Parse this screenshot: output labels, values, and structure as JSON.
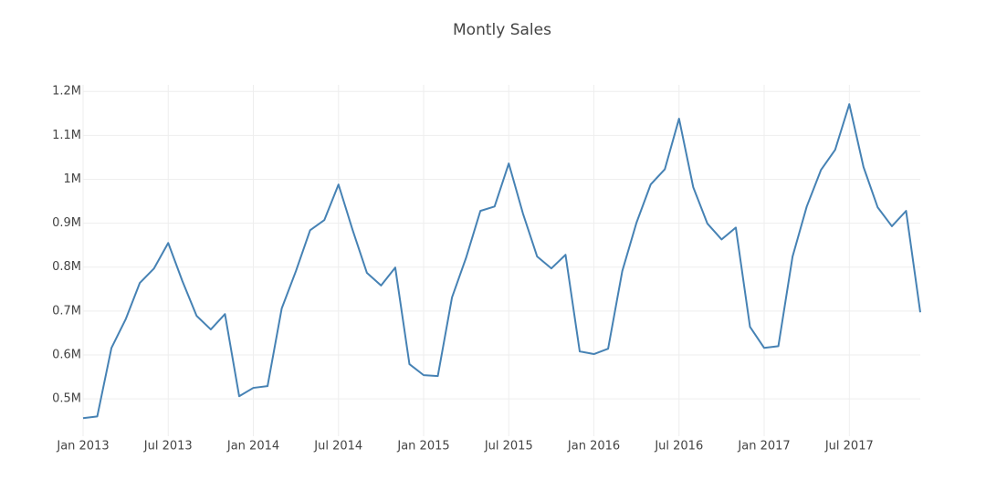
{
  "chart_data": {
    "type": "line",
    "title": "Montly Sales",
    "x": [
      "2013-01",
      "2013-02",
      "2013-03",
      "2013-04",
      "2013-05",
      "2013-06",
      "2013-07",
      "2013-08",
      "2013-09",
      "2013-10",
      "2013-11",
      "2013-12",
      "2014-01",
      "2014-02",
      "2014-03",
      "2014-04",
      "2014-05",
      "2014-06",
      "2014-07",
      "2014-08",
      "2014-09",
      "2014-10",
      "2014-11",
      "2014-12",
      "2015-01",
      "2015-02",
      "2015-03",
      "2015-04",
      "2015-05",
      "2015-06",
      "2015-07",
      "2015-08",
      "2015-09",
      "2015-10",
      "2015-11",
      "2015-12",
      "2016-01",
      "2016-02",
      "2016-03",
      "2016-04",
      "2016-05",
      "2016-06",
      "2016-07",
      "2016-08",
      "2016-09",
      "2016-10",
      "2016-11",
      "2016-12",
      "2017-01",
      "2017-02",
      "2017-03",
      "2017-04",
      "2017-05",
      "2017-06",
      "2017-07",
      "2017-08",
      "2017-09",
      "2017-10",
      "2017-11",
      "2017-12"
    ],
    "values": [
      456000,
      460000,
      616000,
      681000,
      764000,
      797000,
      855000,
      768000,
      689000,
      658000,
      693000,
      506000,
      525000,
      529000,
      706000,
      791000,
      884000,
      907000,
      988000,
      884000,
      787000,
      758000,
      799000,
      579000,
      554000,
      552000,
      731000,
      822000,
      928000,
      938000,
      1036000,
      922000,
      824000,
      797000,
      828000,
      608000,
      602000,
      614000,
      791000,
      901000,
      988000,
      1023000,
      1138000,
      982000,
      899000,
      863000,
      890000,
      664000,
      616000,
      620000,
      824000,
      938000,
      1021000,
      1067000,
      1171000,
      1028000,
      936000,
      893000,
      928000,
      697000
    ],
    "color": "#4682b4",
    "xlim": [
      "2013-01",
      "2017-12"
    ],
    "xticks": [
      {
        "value": "2013-01",
        "label": "Jan 2013"
      },
      {
        "value": "2013-07",
        "label": "Jul 2013"
      },
      {
        "value": "2014-01",
        "label": "Jan 2014"
      },
      {
        "value": "2014-07",
        "label": "Jul 2014"
      },
      {
        "value": "2015-01",
        "label": "Jan 2015"
      },
      {
        "value": "2015-07",
        "label": "Jul 2015"
      },
      {
        "value": "2016-01",
        "label": "Jan 2016"
      },
      {
        "value": "2016-07",
        "label": "Jul 2016"
      },
      {
        "value": "2017-01",
        "label": "Jan 2017"
      },
      {
        "value": "2017-07",
        "label": "Jul 2017"
      }
    ],
    "ylim": [
      415000,
      1215000
    ],
    "yticks": [
      {
        "value": 500000,
        "label": "0.5M"
      },
      {
        "value": 600000,
        "label": "0.6M"
      },
      {
        "value": 700000,
        "label": "0.7M"
      },
      {
        "value": 800000,
        "label": "0.8M"
      },
      {
        "value": 900000,
        "label": "0.9M"
      },
      {
        "value": 1000000,
        "label": "1M"
      },
      {
        "value": 1100000,
        "label": "1.1M"
      },
      {
        "value": 1200000,
        "label": "1.2M"
      }
    ],
    "grid": true
  }
}
